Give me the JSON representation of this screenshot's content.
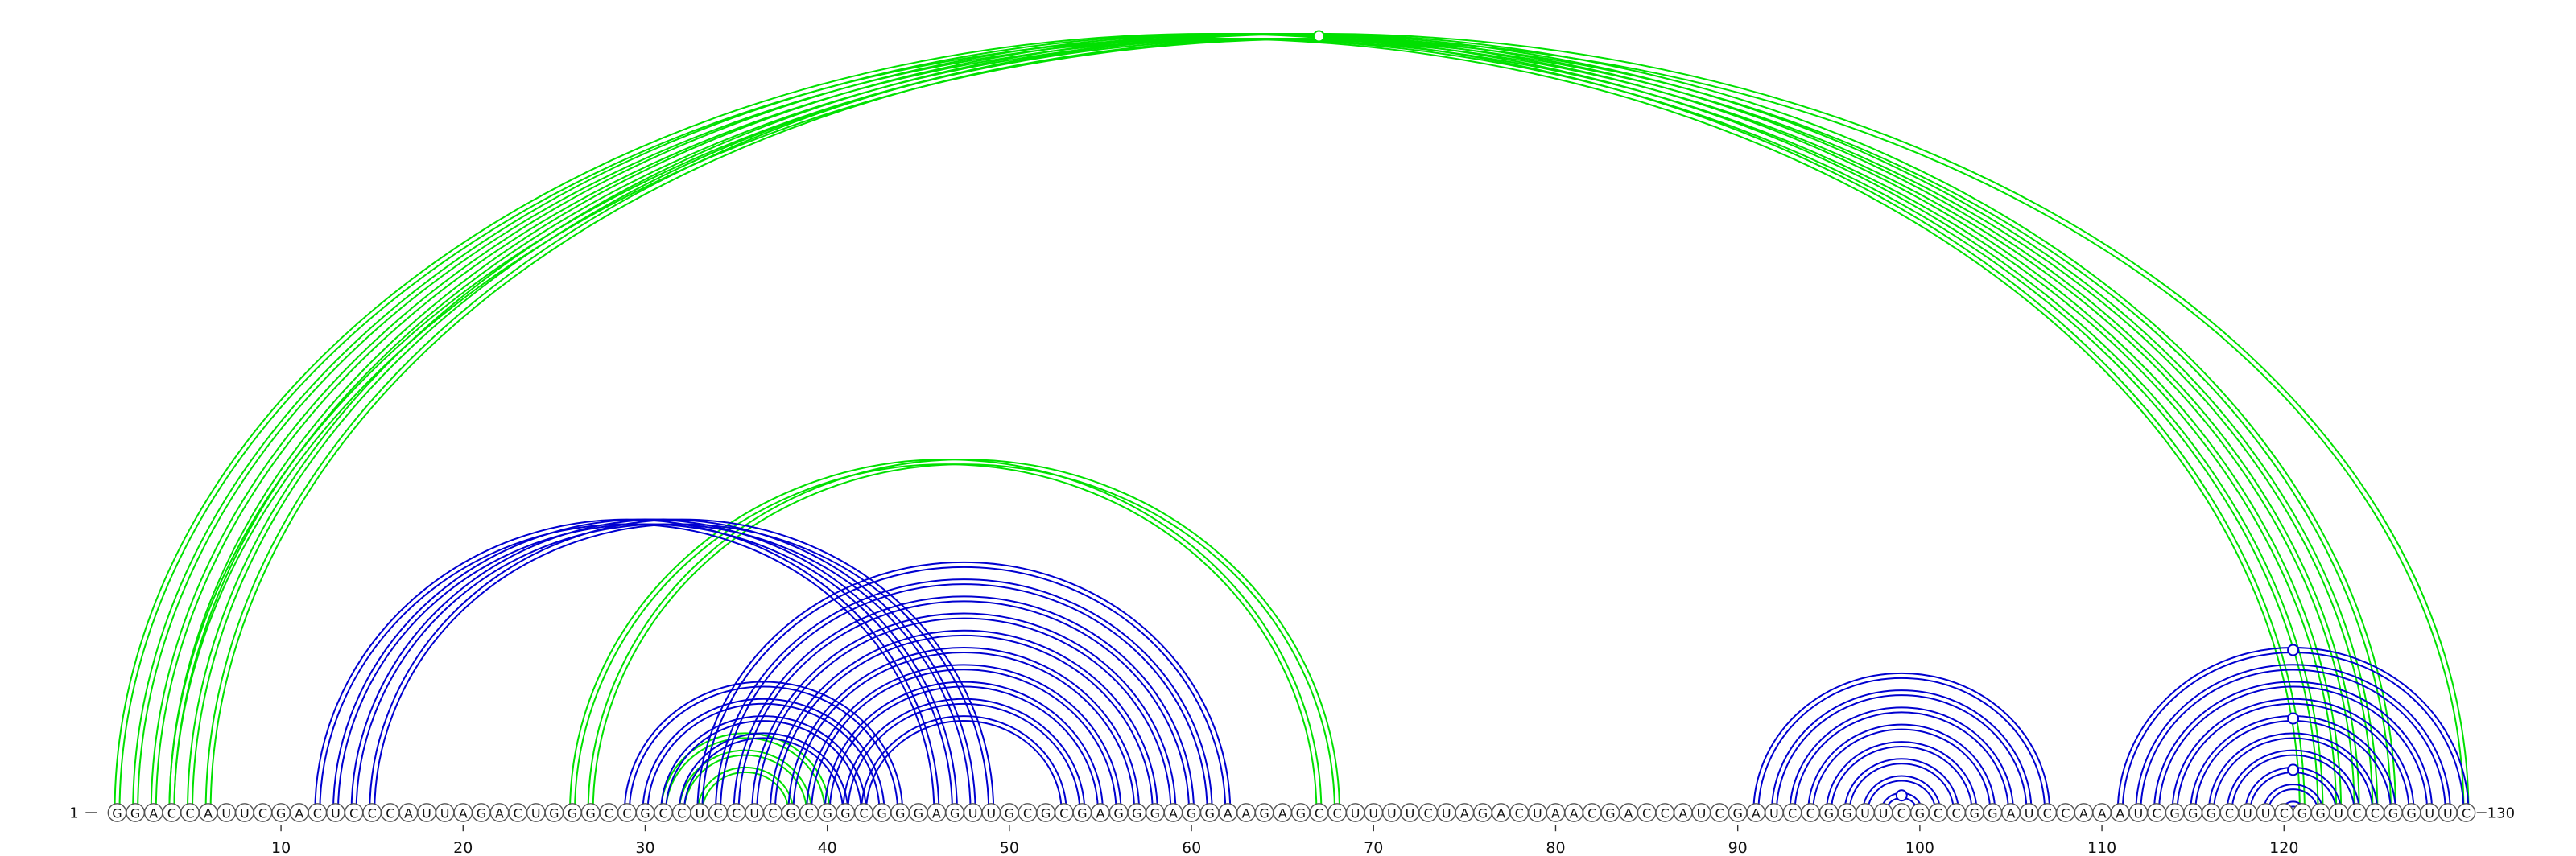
{
  "sequence": "GGACCAUUCGACUCCCAUUAGACUGGGCCGCCUCCUCGCGGCGGGAGUUGCGCGAGGGAGGAAGAGCCUUUUCUAGACUAACGACCAUCGAUCCGGUUCGCCGGAUCCAAAUCGGGCUUCGGUCCGGUUC",
  "start_label": "1",
  "end_label": "130",
  "ticks": [
    "10",
    "20",
    "30",
    "40",
    "50",
    "60",
    "70",
    "80",
    "90",
    "100",
    "110",
    "120"
  ],
  "colors": {
    "green": "#00e000",
    "blue": "#0000d0"
  },
  "arcs": [
    {
      "from": 1,
      "to": 121,
      "color": "green"
    },
    {
      "from": 2,
      "to": 122,
      "color": "green"
    },
    {
      "from": 3,
      "to": 123,
      "color": "green"
    },
    {
      "from": 4,
      "to": 124,
      "color": "green"
    },
    {
      "from": 5,
      "to": 125,
      "color": "green"
    },
    {
      "from": 6,
      "to": 126,
      "color": "green"
    },
    {
      "from": 4,
      "to": 130,
      "color": "green"
    },
    {
      "from": 26,
      "to": 67,
      "color": "green"
    },
    {
      "from": 27,
      "to": 68,
      "color": "green"
    },
    {
      "from": 31,
      "to": 40,
      "color": "green"
    },
    {
      "from": 32,
      "to": 39,
      "color": "green"
    },
    {
      "from": 33,
      "to": 38,
      "color": "green"
    },
    {
      "from": 12,
      "to": 46,
      "color": "blue"
    },
    {
      "from": 13,
      "to": 47,
      "color": "blue"
    },
    {
      "from": 14,
      "to": 48,
      "color": "blue"
    },
    {
      "from": 15,
      "to": 49,
      "color": "blue"
    },
    {
      "from": 29,
      "to": 44,
      "color": "blue"
    },
    {
      "from": 30,
      "to": 43,
      "color": "blue"
    },
    {
      "from": 31,
      "to": 42,
      "color": "blue"
    },
    {
      "from": 32,
      "to": 41,
      "color": "blue"
    },
    {
      "from": 33,
      "to": 62,
      "color": "blue"
    },
    {
      "from": 34,
      "to": 61,
      "color": "blue"
    },
    {
      "from": 35,
      "to": 60,
      "color": "blue"
    },
    {
      "from": 36,
      "to": 59,
      "color": "blue"
    },
    {
      "from": 37,
      "to": 58,
      "color": "blue"
    },
    {
      "from": 38,
      "to": 57,
      "color": "blue"
    },
    {
      "from": 39,
      "to": 56,
      "color": "blue"
    },
    {
      "from": 40,
      "to": 55,
      "color": "blue"
    },
    {
      "from": 41,
      "to": 54,
      "color": "blue"
    },
    {
      "from": 42,
      "to": 53,
      "color": "blue"
    },
    {
      "from": 91,
      "to": 107,
      "color": "blue"
    },
    {
      "from": 92,
      "to": 106,
      "color": "blue"
    },
    {
      "from": 93,
      "to": 105,
      "color": "blue"
    },
    {
      "from": 94,
      "to": 104,
      "color": "blue"
    },
    {
      "from": 95,
      "to": 103,
      "color": "blue"
    },
    {
      "from": 96,
      "to": 102,
      "color": "blue"
    },
    {
      "from": 97,
      "to": 101,
      "color": "blue"
    },
    {
      "from": 98,
      "to": 100,
      "color": "blue"
    },
    {
      "from": 111,
      "to": 130,
      "color": "blue"
    },
    {
      "from": 112,
      "to": 129,
      "color": "blue"
    },
    {
      "from": 113,
      "to": 128,
      "color": "blue"
    },
    {
      "from": 114,
      "to": 127,
      "color": "blue"
    },
    {
      "from": 115,
      "to": 126,
      "color": "blue"
    },
    {
      "from": 116,
      "to": 125,
      "color": "blue"
    },
    {
      "from": 117,
      "to": 124,
      "color": "blue"
    },
    {
      "from": 118,
      "to": 123,
      "color": "blue"
    },
    {
      "from": 119,
      "to": 122,
      "color": "blue"
    },
    {
      "from": 120,
      "to": 121,
      "color": "blue"
    }
  ],
  "markers": [
    {
      "arc": 6,
      "color": "green"
    },
    {
      "arc": 37,
      "color": "blue"
    },
    {
      "arc": 38,
      "color": "blue"
    },
    {
      "arc": 42,
      "color": "blue"
    },
    {
      "arc": 45,
      "color": "blue"
    }
  ]
}
